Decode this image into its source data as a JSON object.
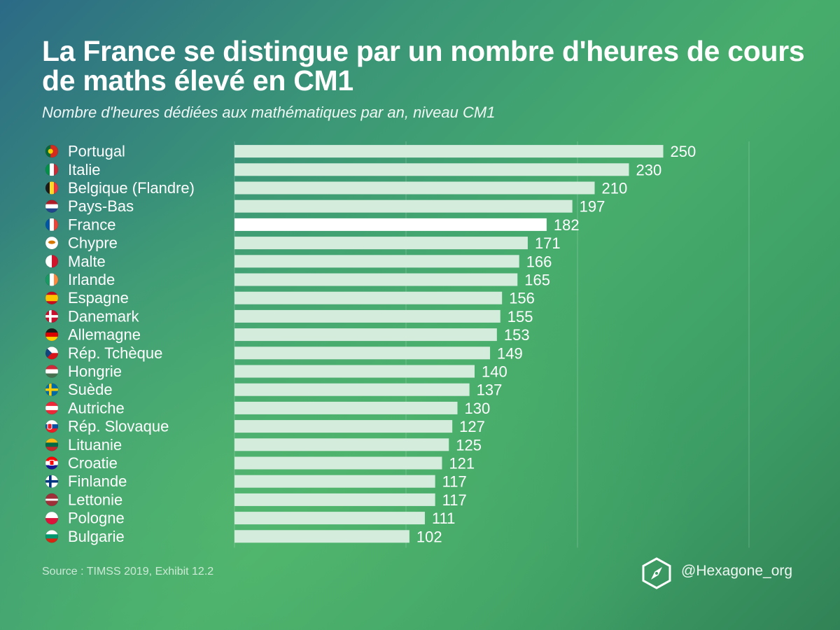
{
  "title": "La France se distingue par un nombre d'heures de cours de maths élevé en CM1",
  "subtitle": "Nombre d'heures dédiées aux mathématiques par an, niveau CM1",
  "source": "Source : TIMSS 2019, Exhibit 12.2",
  "brand": {
    "handle": "@Hexagone_org",
    "icon": "hexagon-compass-logo-icon"
  },
  "colors": {
    "bar": "#d4ecdc",
    "highlight": "#ffffff",
    "grid": "rgba(255,255,255,0.22)"
  },
  "chart_data": {
    "type": "bar",
    "orientation": "horizontal",
    "title": "La France se distingue par un nombre d'heures de cours de maths élevé en CM1",
    "subtitle": "Nombre d'heures dédiées aux mathématiques par an, niveau CM1",
    "xlim": [
      0,
      300
    ],
    "grid": true,
    "highlight": "France",
    "categories": [
      "Portugal",
      "Italie",
      "Belgique (Flandre)",
      "Pays-Bas",
      "France",
      "Chypre",
      "Malte",
      "Irlande",
      "Espagne",
      "Danemark",
      "Allemagne",
      "Rép. Tchèque",
      "Hongrie",
      "Suède",
      "Autriche",
      "Rép. Slovaque",
      "Lituanie",
      "Croatie",
      "Finlande",
      "Lettonie",
      "Pologne",
      "Bulgarie"
    ],
    "values": [
      250,
      230,
      210,
      197,
      182,
      171,
      166,
      165,
      156,
      155,
      153,
      149,
      140,
      137,
      130,
      127,
      125,
      121,
      117,
      117,
      111,
      102
    ],
    "flags": [
      "portugal-flag-icon",
      "italy-flag-icon",
      "belgium-flag-icon",
      "netherlands-flag-icon",
      "france-flag-icon",
      "cyprus-flag-icon",
      "malta-flag-icon",
      "ireland-flag-icon",
      "spain-flag-icon",
      "denmark-flag-icon",
      "germany-flag-icon",
      "czech-flag-icon",
      "hungary-flag-icon",
      "sweden-flag-icon",
      "austria-flag-icon",
      "slovakia-flag-icon",
      "lithuania-flag-icon",
      "croatia-flag-icon",
      "finland-flag-icon",
      "latvia-flag-icon",
      "poland-flag-icon",
      "bulgaria-flag-icon"
    ]
  }
}
